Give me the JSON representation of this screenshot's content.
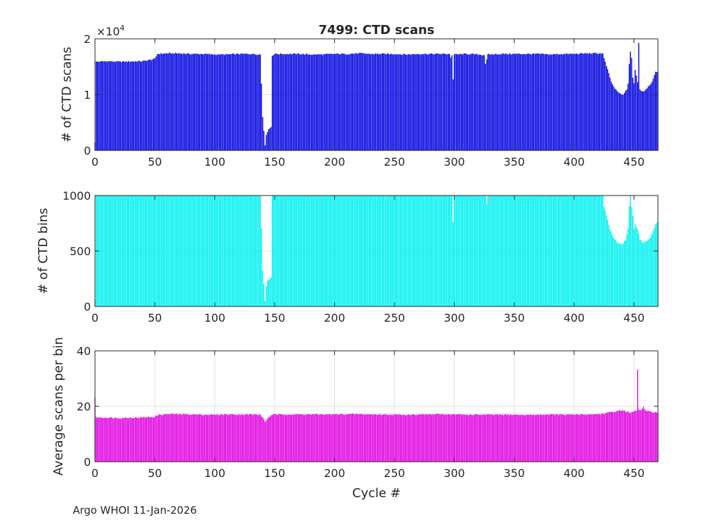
{
  "footer": "Argo WHOI 11-Jan-2026",
  "x_label": "Cycle #",
  "exponent_prefix": "×10",
  "exponent_power": "4",
  "chart_data": [
    {
      "type": "bar",
      "title": "7499: CTD scans",
      "xlabel": "",
      "ylabel": "# of CTD scans",
      "color": "#0000e0",
      "xlim": [
        0,
        470
      ],
      "ylim": [
        0,
        20000
      ],
      "xticks": [
        0,
        50,
        100,
        150,
        200,
        250,
        300,
        350,
        400,
        450
      ],
      "yticks": [
        0,
        10000,
        20000
      ],
      "ytick_labels": [
        "0",
        "1",
        "2"
      ],
      "profile": [
        [
          0,
          1500
        ],
        [
          1,
          15900
        ],
        [
          10,
          16000
        ],
        [
          20,
          15900
        ],
        [
          30,
          15950
        ],
        [
          40,
          16000
        ],
        [
          50,
          16400
        ],
        [
          52,
          17300
        ],
        [
          60,
          17400
        ],
        [
          70,
          17400
        ],
        [
          80,
          17300
        ],
        [
          90,
          17300
        ],
        [
          100,
          17200
        ],
        [
          110,
          17200
        ],
        [
          120,
          17300
        ],
        [
          130,
          17300
        ],
        [
          138,
          17200
        ],
        [
          139,
          12000
        ],
        [
          140,
          6000
        ],
        [
          141,
          3500
        ],
        [
          142,
          900
        ],
        [
          143,
          2800
        ],
        [
          145,
          3800
        ],
        [
          147,
          4200
        ],
        [
          148,
          17000
        ],
        [
          150,
          17300
        ],
        [
          160,
          17300
        ],
        [
          170,
          17300
        ],
        [
          180,
          17200
        ],
        [
          190,
          17200
        ],
        [
          200,
          17300
        ],
        [
          210,
          17300
        ],
        [
          220,
          17400
        ],
        [
          230,
          17300
        ],
        [
          240,
          17300
        ],
        [
          250,
          17300
        ],
        [
          260,
          17200
        ],
        [
          270,
          17300
        ],
        [
          280,
          17300
        ],
        [
          290,
          17300
        ],
        [
          296,
          17300
        ],
        [
          297,
          16700
        ],
        [
          298,
          17000
        ],
        [
          299,
          12800
        ],
        [
          300,
          17200
        ],
        [
          310,
          17300
        ],
        [
          320,
          17200
        ],
        [
          325,
          17100
        ],
        [
          326,
          15600
        ],
        [
          327,
          16200
        ],
        [
          328,
          17200
        ],
        [
          340,
          17300
        ],
        [
          350,
          17300
        ],
        [
          360,
          17300
        ],
        [
          370,
          17300
        ],
        [
          380,
          17200
        ],
        [
          390,
          17300
        ],
        [
          400,
          17300
        ],
        [
          410,
          17400
        ],
        [
          420,
          17400
        ],
        [
          424,
          17400
        ],
        [
          425,
          16500
        ],
        [
          428,
          14500
        ],
        [
          430,
          13000
        ],
        [
          432,
          11800
        ],
        [
          435,
          10800
        ],
        [
          438,
          10200
        ],
        [
          440,
          10000
        ],
        [
          442,
          10200
        ],
        [
          444,
          11000
        ],
        [
          445,
          12000
        ],
        [
          446,
          15500
        ],
        [
          447,
          17700
        ],
        [
          448,
          16500
        ],
        [
          449,
          13000
        ],
        [
          450,
          12000
        ],
        [
          451,
          14500
        ],
        [
          452,
          13500
        ],
        [
          453,
          12200
        ],
        [
          454,
          19300
        ],
        [
          455,
          11000
        ],
        [
          456,
          10700
        ],
        [
          458,
          10600
        ],
        [
          460,
          11000
        ],
        [
          462,
          11500
        ],
        [
          464,
          12000
        ],
        [
          466,
          12800
        ],
        [
          468,
          14000
        ],
        [
          470,
          14200
        ]
      ]
    },
    {
      "type": "bar",
      "title": "",
      "xlabel": "",
      "ylabel": "# of CTD bins",
      "color": "#00f0f0",
      "xlim": [
        0,
        470
      ],
      "ylim": [
        0,
        1000
      ],
      "xticks": [
        0,
        50,
        100,
        150,
        200,
        250,
        300,
        350,
        400,
        450
      ],
      "yticks": [
        0,
        500,
        1000
      ],
      "ytick_labels": [
        "0",
        "500",
        "1000"
      ],
      "profile": [
        [
          0,
          60
        ],
        [
          1,
          1000
        ],
        [
          138,
          1000
        ],
        [
          139,
          700
        ],
        [
          140,
          330
        ],
        [
          141,
          200
        ],
        [
          142,
          50
        ],
        [
          143,
          180
        ],
        [
          144,
          230
        ],
        [
          146,
          250
        ],
        [
          147,
          260
        ],
        [
          148,
          1000
        ],
        [
          298,
          1000
        ],
        [
          299,
          760
        ],
        [
          300,
          1000
        ],
        [
          326,
          1000
        ],
        [
          327,
          920
        ],
        [
          328,
          990
        ],
        [
          329,
          1000
        ],
        [
          424,
          1000
        ],
        [
          425,
          900
        ],
        [
          427,
          820
        ],
        [
          430,
          700
        ],
        [
          433,
          620
        ],
        [
          436,
          580
        ],
        [
          440,
          560
        ],
        [
          443,
          600
        ],
        [
          445,
          700
        ],
        [
          446,
          900
        ],
        [
          447,
          1000
        ],
        [
          448,
          900
        ],
        [
          449,
          820
        ],
        [
          450,
          700
        ],
        [
          451,
          740
        ],
        [
          453,
          700
        ],
        [
          455,
          600
        ],
        [
          458,
          580
        ],
        [
          460,
          580
        ],
        [
          462,
          600
        ],
        [
          464,
          630
        ],
        [
          466,
          680
        ],
        [
          468,
          740
        ],
        [
          470,
          760
        ]
      ]
    },
    {
      "type": "bar",
      "title": "",
      "xlabel": "Cycle #",
      "ylabel": "Average scans per bin",
      "color": "#e000e0",
      "xlim": [
        0,
        470
      ],
      "ylim": [
        0,
        40
      ],
      "xticks": [
        0,
        50,
        100,
        150,
        200,
        250,
        300,
        350,
        400,
        450
      ],
      "yticks": [
        0,
        20,
        40
      ],
      "ytick_labels": [
        "0",
        "20",
        "40"
      ],
      "profile": [
        [
          0,
          23.5
        ],
        [
          1,
          16.0
        ],
        [
          10,
          15.9
        ],
        [
          20,
          15.8
        ],
        [
          30,
          15.9
        ],
        [
          40,
          16.0
        ],
        [
          50,
          16.2
        ],
        [
          52,
          16.8
        ],
        [
          55,
          17.0
        ],
        [
          60,
          17.2
        ],
        [
          70,
          17.2
        ],
        [
          80,
          17.1
        ],
        [
          90,
          17.0
        ],
        [
          100,
          17.0
        ],
        [
          110,
          17.1
        ],
        [
          120,
          17.1
        ],
        [
          130,
          17.1
        ],
        [
          138,
          17.0
        ],
        [
          139,
          16.5
        ],
        [
          141,
          15.2
        ],
        [
          142,
          14.5
        ],
        [
          143,
          15.0
        ],
        [
          145,
          16.0
        ],
        [
          147,
          16.8
        ],
        [
          148,
          17.0
        ],
        [
          160,
          17.1
        ],
        [
          170,
          17.1
        ],
        [
          180,
          17.1
        ],
        [
          190,
          17.1
        ],
        [
          200,
          17.1
        ],
        [
          210,
          17.2
        ],
        [
          220,
          17.2
        ],
        [
          230,
          17.1
        ],
        [
          240,
          17.1
        ],
        [
          250,
          17.0
        ],
        [
          260,
          17.0
        ],
        [
          270,
          17.1
        ],
        [
          280,
          17.1
        ],
        [
          290,
          17.2
        ],
        [
          300,
          17.1
        ],
        [
          310,
          17.0
        ],
        [
          320,
          17.0
        ],
        [
          330,
          17.0
        ],
        [
          340,
          17.0
        ],
        [
          350,
          17.0
        ],
        [
          360,
          16.9
        ],
        [
          370,
          17.0
        ],
        [
          380,
          17.1
        ],
        [
          390,
          17.0
        ],
        [
          400,
          17.0
        ],
        [
          410,
          17.1
        ],
        [
          420,
          17.2
        ],
        [
          425,
          17.4
        ],
        [
          430,
          17.8
        ],
        [
          435,
          18.2
        ],
        [
          440,
          18.6
        ],
        [
          445,
          18.0
        ],
        [
          447,
          17.5
        ],
        [
          450,
          18.2
        ],
        [
          452,
          18.5
        ],
        [
          453,
          33.2
        ],
        [
          454,
          18.8
        ],
        [
          456,
          18.5
        ],
        [
          458,
          19.8
        ],
        [
          460,
          18.2
        ],
        [
          465,
          18.0
        ],
        [
          470,
          17.8
        ]
      ]
    }
  ]
}
